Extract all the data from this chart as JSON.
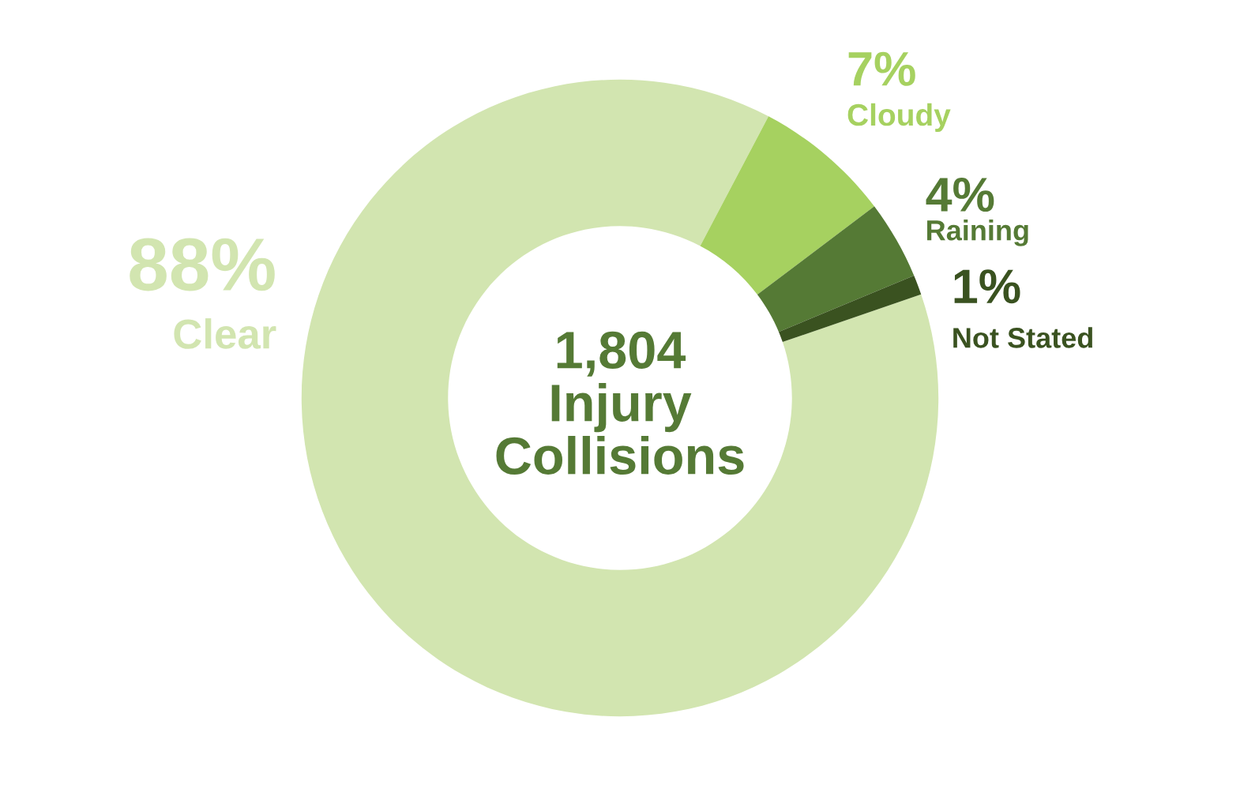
{
  "chart_data": {
    "type": "donut",
    "title": "1,804\nInjury\nCollisions",
    "categories": [
      "Clear",
      "Cloudy",
      "Raining",
      "Not Stated"
    ],
    "values": [
      88,
      7,
      4,
      1
    ],
    "colors": [
      "#d2e5b0",
      "#a6d160",
      "#557a35",
      "#3a5220"
    ],
    "value_labels": [
      "88%",
      "7%",
      "4%",
      "1%"
    ],
    "legend": false
  }
}
